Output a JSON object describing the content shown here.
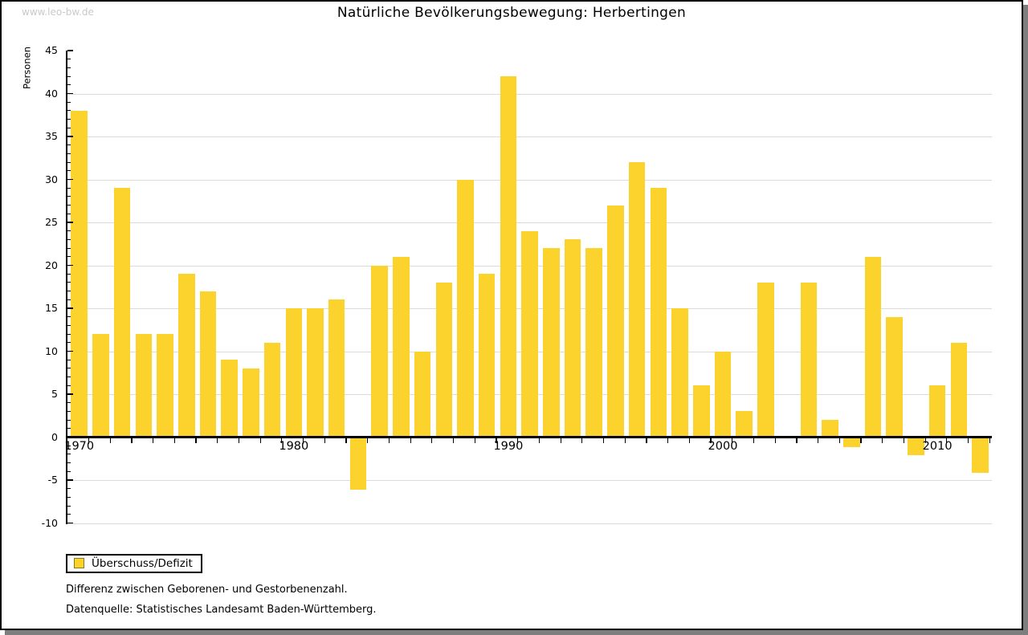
{
  "watermark": "www.leo-bw.de",
  "title": "Natürliche Bevölkerungsbewegung: Herbertingen",
  "legend": {
    "label": "Überschuss/Defizit"
  },
  "footnotes": [
    "Differenz zwischen Geborenen- und Gestorbenenzahl.",
    "Datenquelle: Statistisches Landesamt Baden-Württemberg."
  ],
  "colors": {
    "bar": "#FCD32C",
    "swatch_border": "#8a7b17",
    "gridline": "#dbdbdb",
    "shadow": "#7e7e7e",
    "watermark": "#c9c9c9"
  },
  "chart_data": {
    "type": "bar",
    "title": "Natürliche Bevölkerungsbewegung: Herbertingen",
    "series_name": "Überschuss/Defizit",
    "ylabel": "Personen",
    "xlabel": "",
    "ylim": [
      -10,
      45
    ],
    "ytick_step": 5,
    "grid": true,
    "legend_position": "bottom-left",
    "xtick_labels": [
      1970,
      1980,
      1990,
      2000,
      2010
    ],
    "x": [
      1970,
      1971,
      1972,
      1973,
      1974,
      1975,
      1976,
      1977,
      1978,
      1979,
      1980,
      1981,
      1982,
      1983,
      1984,
      1985,
      1986,
      1987,
      1988,
      1989,
      1990,
      1991,
      1992,
      1993,
      1994,
      1995,
      1996,
      1997,
      1998,
      1999,
      2000,
      2001,
      2002,
      2003,
      2004,
      2005,
      2006,
      2007,
      2008,
      2009,
      2010,
      2011,
      2012
    ],
    "values": [
      38,
      12,
      29,
      12,
      12,
      19,
      17,
      9,
      8,
      11,
      15,
      15,
      16,
      -6,
      20,
      21,
      10,
      18,
      30,
      19,
      42,
      24,
      22,
      23,
      22,
      27,
      32,
      29,
      15,
      6,
      10,
      3,
      18,
      0,
      18,
      2,
      -1,
      21,
      14,
      -2,
      6,
      11,
      -4
    ]
  }
}
